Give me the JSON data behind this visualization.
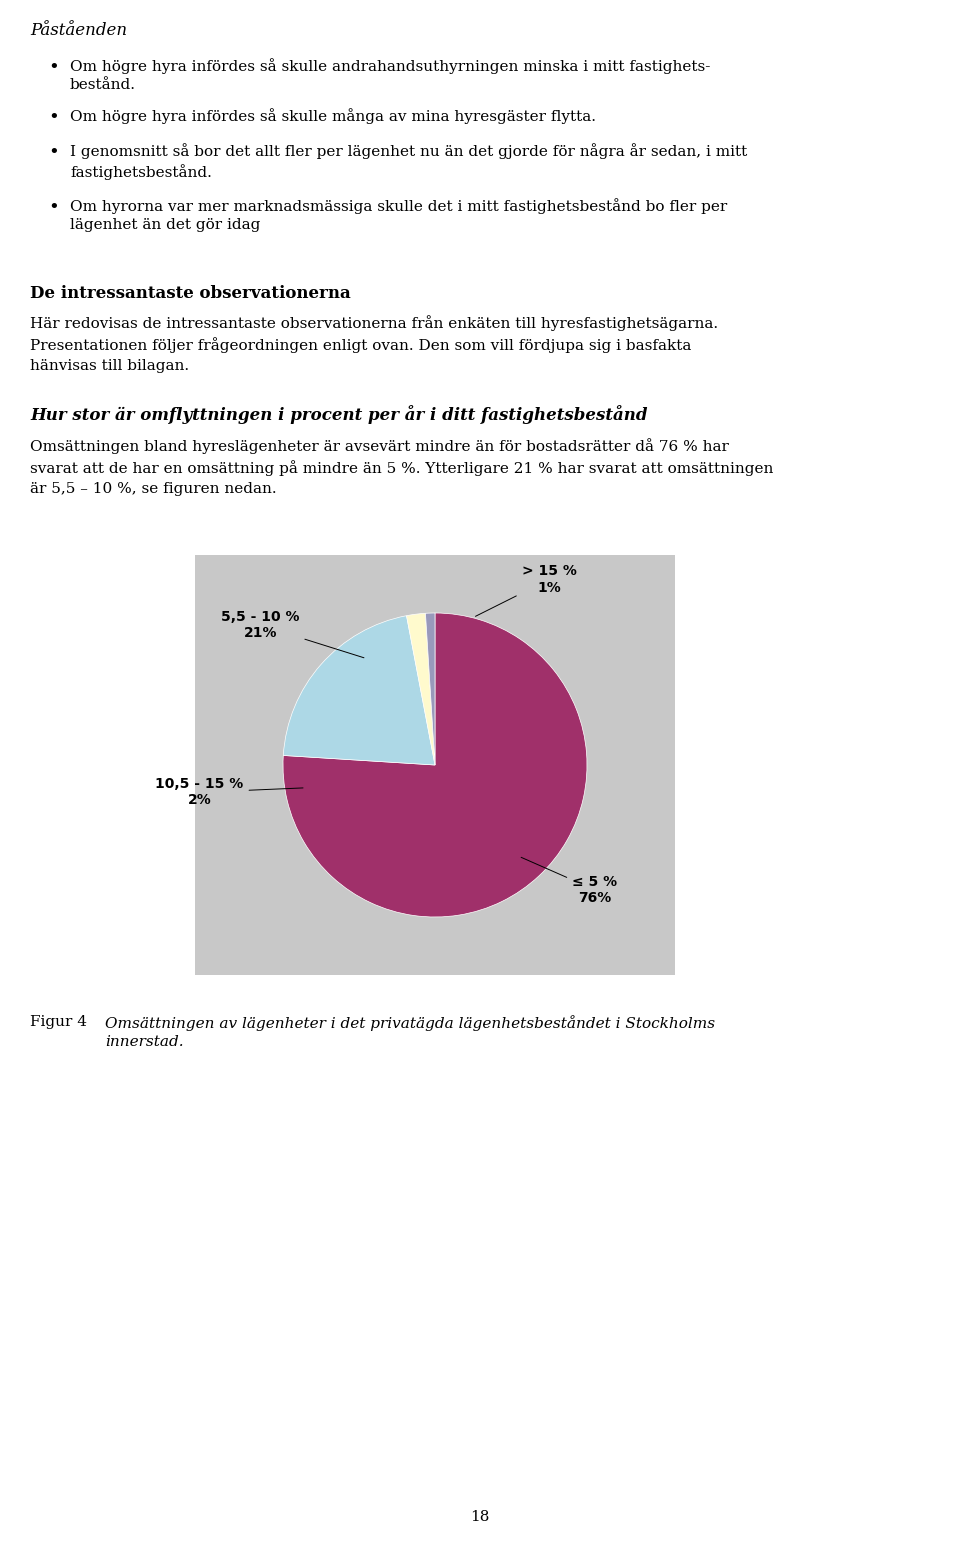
{
  "page_background": "#ffffff",
  "chart_background": "#c8c8c8",
  "page_number": "18",
  "section_title": "Påståenden",
  "bullet_points": [
    "Om högre hyra infördes så skulle andrahandsuthyrningen minska i mitt fastighets-\nbestånd.",
    "Om högre hyra infördes så skulle många av mina hyresgäster flytta.",
    "I genomsnitt så bor det allt fler per lägenhet nu än det gjorde för några år sedan, i mitt\nfastighetsbestånd.",
    "Om hyrorna var mer marknadsmässiga skulle det i mitt fastighetsbestånd bo fler per\nlägenhet än det gör idag"
  ],
  "section2_title": "De intressantaste observationerna",
  "section2_body": "Här redovisas de intressantaste observationerna från enkäten till hyresfastighetsägarna.\nPresentationen följer frågeordningen enligt ovan. Den som vill fördjupa sig i basfakta\nhänvisas till bilagan.",
  "section3_title": "Hur stor är omflyttningen i procent per år i ditt fastighetsbestånd",
  "section3_body": "Omsättningen bland hyreslägenheter är avsevärt mindre än för bostadsrätter då 76 % har\nsvarat att de har en omsättning på mindre än 5 %. Ytterligare 21 % har svarat att omsättningen\när 5,5 – 10 %, se figuren nedan.",
  "pie_slices": [
    76,
    21,
    2,
    1
  ],
  "pie_colors": [
    "#a0306a",
    "#add8e6",
    "#fffacd",
    "#9999bb"
  ],
  "figure_label": "Figur 4",
  "figure_caption": "Omsättningen av lägenheter i det privatägda lägenhetsbeståndet i Stockholms\ninnerstad."
}
